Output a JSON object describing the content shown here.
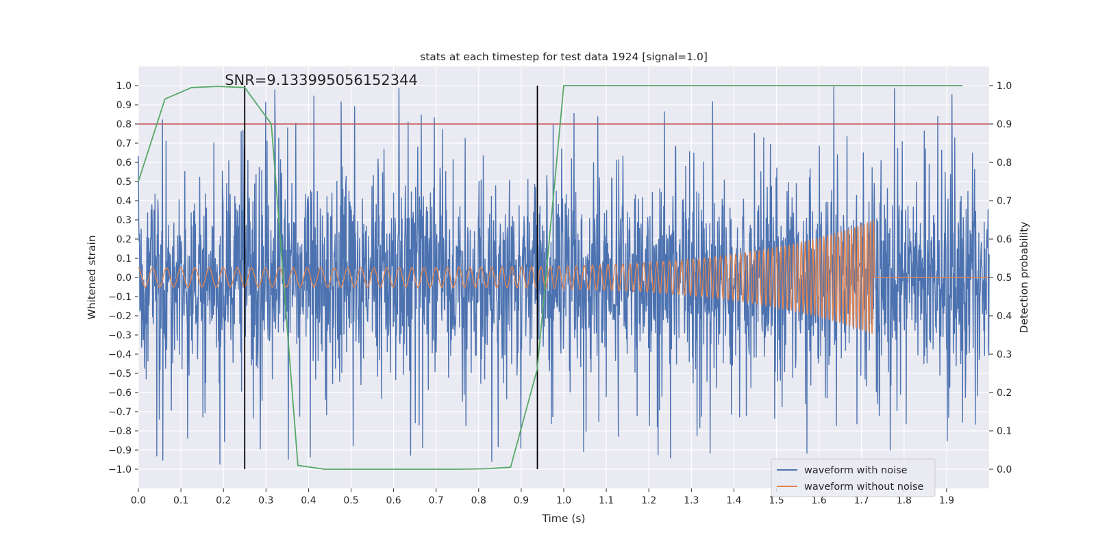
{
  "colors": {
    "background": "#eaeaf2",
    "grid": "#ffffff",
    "noisy": "#4c72b0",
    "clean": "#dd8452",
    "probability": "#55a868",
    "threshold": "#c44e52",
    "marker": "#000000",
    "text": "#262626"
  },
  "chart_data": {
    "type": "line",
    "title": "stats at each timestep for test data 1924 [signal=1.0]",
    "xlabel": "Time (s)",
    "ylabel": "Whitened strain",
    "y2label": "Detection probability",
    "xlim": [
      0.0,
      2.0
    ],
    "ylim": [
      -1.1,
      1.1
    ],
    "y2lim": [
      -0.05,
      1.05
    ],
    "x_ticks": [
      0.0,
      0.1,
      0.2,
      0.3,
      0.4,
      0.5,
      0.6,
      0.7,
      0.8,
      0.9,
      1.0,
      1.1,
      1.2,
      1.3,
      1.4,
      1.5,
      1.6,
      1.7,
      1.8,
      1.9
    ],
    "x_tick_labels": [
      "0.0",
      "0.1",
      "0.2",
      "0.3",
      "0.4",
      "0.5",
      "0.6",
      "0.7",
      "0.8",
      "0.9",
      "1.0",
      "1.1",
      "1.2",
      "1.3",
      "1.4",
      "1.5",
      "1.6",
      "1.7",
      "1.8",
      "1.9"
    ],
    "y_ticks": [
      -1.0,
      -0.9,
      -0.8,
      -0.7,
      -0.6,
      -0.5,
      -0.4,
      -0.3,
      -0.2,
      -0.1,
      0.0,
      0.1,
      0.2,
      0.3,
      0.4,
      0.5,
      0.6,
      0.7,
      0.8,
      0.9,
      1.0
    ],
    "y_tick_labels": [
      "−1.0",
      "−0.9",
      "−0.8",
      "−0.7",
      "−0.6",
      "−0.5",
      "−0.4",
      "−0.3",
      "−0.2",
      "−0.1",
      "0.0",
      "0.1",
      "0.2",
      "0.3",
      "0.4",
      "0.5",
      "0.6",
      "0.7",
      "0.8",
      "0.9",
      "1.0"
    ],
    "y2_ticks": [
      0.0,
      0.1,
      0.2,
      0.3,
      0.4,
      0.5,
      0.6,
      0.7,
      0.8,
      0.9,
      1.0
    ],
    "y2_tick_labels": [
      "0.0",
      "0.1",
      "0.2",
      "0.3",
      "0.4",
      "0.5",
      "0.6",
      "0.7",
      "0.8",
      "0.9",
      "1.0"
    ],
    "annotation": {
      "text": "SNR=9.133995056152344",
      "x": 0.2,
      "y": 1.0
    },
    "threshold": {
      "value": 0.8,
      "axis": "y"
    },
    "event_markers": [
      0.25,
      0.938
    ],
    "series": [
      {
        "name": "waveform with noise",
        "kind": "noise",
        "note": "whitened strain noise, roughly uniform amplitude ~±0.4 with spikes to ±1.0",
        "x_range": [
          0.0,
          2.0
        ],
        "amplitude_typical": 0.4,
        "amplitude_peak": 1.0
      },
      {
        "name": "waveform without noise",
        "kind": "chirp",
        "start_time": 0.0,
        "merger_time": 1.73,
        "f_start": 30,
        "f_end": 140,
        "amp_start": 0.05,
        "amp_peak": 0.3
      },
      {
        "name": "detection probability",
        "axis": "y2",
        "in_legend": false,
        "x": [
          0.0,
          0.0625,
          0.125,
          0.1875,
          0.25,
          0.3125,
          0.375,
          0.4375,
          0.5,
          0.5625,
          0.625,
          0.6875,
          0.75,
          0.8125,
          0.875,
          0.9375,
          1.0,
          1.9375
        ],
        "values": [
          0.75,
          0.965,
          0.995,
          0.998,
          0.995,
          0.9,
          0.01,
          0.0,
          0.0,
          0.0,
          0.0,
          0.0,
          0.0,
          0.001,
          0.005,
          0.26,
          1.0,
          1.0
        ]
      }
    ],
    "legend": {
      "position": "lower-right",
      "entries": [
        "waveform with noise",
        "waveform without noise"
      ]
    }
  }
}
